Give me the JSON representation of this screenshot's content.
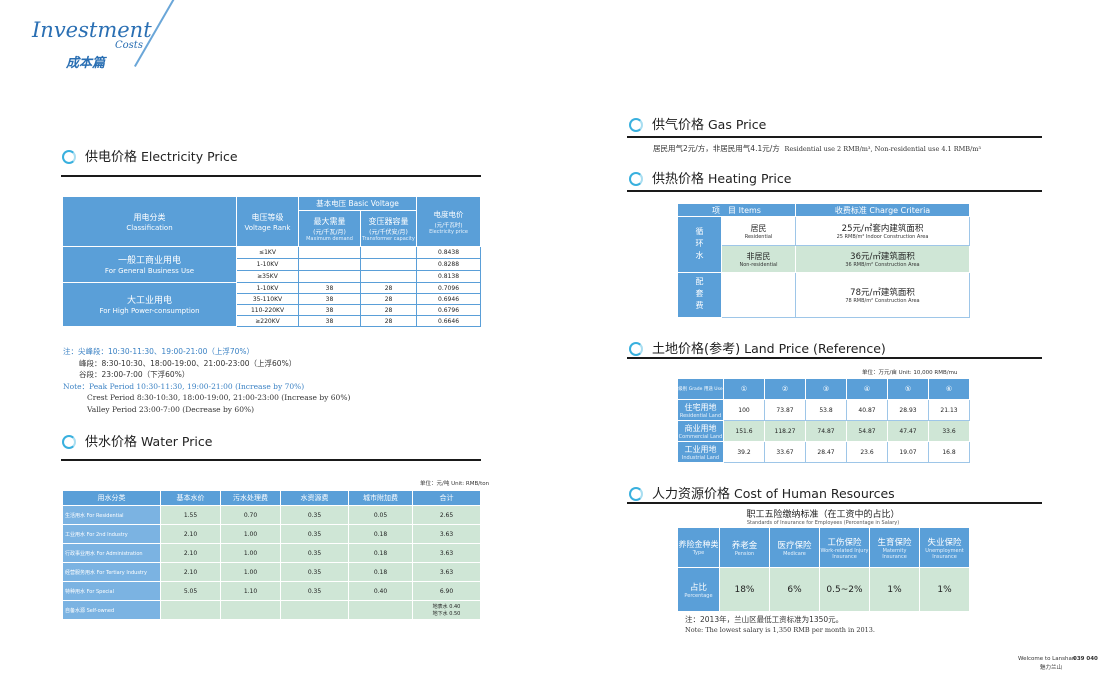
{
  "brand": {
    "title": "Investment",
    "sub": "Costs",
    "cn": "成本篇"
  },
  "electricity": {
    "heading_cn": "供电价格",
    "heading_en": "Electricity Price",
    "headers": {
      "class_cn": "用电分类",
      "class_en": "Classification",
      "volt_cn": "电压等级",
      "volt_en": "Voltage Rank",
      "basic_cn": "基本电压",
      "basic_en": "Basic Voltage",
      "maxd_cn": "最大需量",
      "maxd_unit": "(元/千瓦/月)",
      "maxd_en": "Maximum demand",
      "trans_cn": "变压器容量",
      "trans_unit": "(元/千伏安/月)",
      "trans_en": "Transformer capacity",
      "price_cn": "电度电价",
      "price_unit": "(元/千瓦时)",
      "price_en": "Electricity price"
    },
    "groups": [
      {
        "cn": "一般工商业用电",
        "en": "For General Business Use",
        "rows": [
          [
            "≤1KV",
            "",
            "",
            "0.8438"
          ],
          [
            "1-10KV",
            "",
            "",
            "0.8288"
          ],
          [
            "≥35KV",
            "",
            "",
            "0.8138"
          ]
        ]
      },
      {
        "cn": "大工业用电",
        "en": "For High Power-consumption",
        "rows": [
          [
            "1-10KV",
            "38",
            "28",
            "0.7096"
          ],
          [
            "35-110KV",
            "38",
            "28",
            "0.6946"
          ],
          [
            "110-220KV",
            "38",
            "28",
            "0.6796"
          ],
          [
            "≥220KV",
            "38",
            "28",
            "0.6646"
          ]
        ]
      }
    ],
    "notes_cn": [
      "注：尖峰段：10:30-11:30、19:00-21:00（上浮70%）",
      "峰段：8:30-10:30、18:00-19:00、21:00-23:00（上浮60%）",
      "谷段：23:00-7:00（下浮60%）"
    ],
    "notes_en": [
      "Note：Peak Period 10:30-11:30, 19:00-21:00 (Increase by 70%)",
      "Crest Period 8:30-10:30, 18:00-19:00, 21:00-23:00 (Increase by 60%)",
      "Valley Period 23:00-7:00 (Decrease by 60%)"
    ]
  },
  "water": {
    "heading_cn": "供水价格",
    "heading_en": "Water Price",
    "unit": "单位：元/吨 Unit: RMB/ton",
    "headers": [
      "用水分类",
      "基本水价",
      "污水处理费",
      "水资源费",
      "城市附加费",
      "合计"
    ],
    "rows": [
      [
        "生活用水 For Residential",
        "1.55",
        "0.70",
        "0.35",
        "0.05",
        "2.65"
      ],
      [
        "工业用水 For 2nd Industry",
        "2.10",
        "1.00",
        "0.35",
        "0.18",
        "3.63"
      ],
      [
        "行政事业用水 For Administration",
        "2.10",
        "1.00",
        "0.35",
        "0.18",
        "3.63"
      ],
      [
        "经营服务用水 For Tertiary Industry",
        "2.10",
        "1.00",
        "0.35",
        "0.18",
        "3.63"
      ],
      [
        "特种用水 For Special",
        "5.05",
        "1.10",
        "0.35",
        "0.40",
        "6.90"
      ],
      [
        "自备水源 Self-owned",
        "",
        "",
        "",
        "",
        "地表水 0.40\n地下水 0.50"
      ]
    ]
  },
  "gas": {
    "heading_cn": "供气价格",
    "heading_en": "Gas Price",
    "text_cn": "居民用气2元/方，非居民用气4.1元/方",
    "text_en": "Residential use 2 RMB/m³, Non-residential use 4.1 RMB/m³"
  },
  "heating": {
    "heading_cn": "供热价格",
    "heading_en": "Heating Price",
    "col1": "项　目 Items",
    "col2": "收费标准 Charge Criteria",
    "cat1": "循环水",
    "cat2": "配套费",
    "r1_cn": "居民",
    "r1_en": "Residential",
    "r1_val": "25元/㎡套内建筑面积",
    "r1_val_en": "25 RMB/m² Indoor Construction Area",
    "r2_cn": "非居民",
    "r2_en": "Non-residential",
    "r2_val": "36元/㎡建筑面积",
    "r2_val_en": "36 RMB/m² Construction Area",
    "r3_val": "78元/㎡建筑面积",
    "r3_val_en": "78 RMB/m² Construction Area"
  },
  "land": {
    "heading_cn": "土地价格(参考)",
    "heading_en": "Land Price (Reference)",
    "unit": "单位：万元/亩 Unit: 10,000 RMB/mu",
    "corner": "级别 Grade 用途 Use",
    "cols": [
      "①",
      "②",
      "③",
      "④",
      "⑤",
      "⑥"
    ],
    "rows": [
      {
        "cn": "住宅用地",
        "en": "Residential Land",
        "vals": [
          "100",
          "73.87",
          "53.8",
          "40.87",
          "28.93",
          "21.13"
        ]
      },
      {
        "cn": "商业用地",
        "en": "Commercial Land",
        "vals": [
          "151.6",
          "118.27",
          "74.87",
          "54.87",
          "47.47",
          "33.6"
        ]
      },
      {
        "cn": "工业用地",
        "en": "Industrial Land",
        "vals": [
          "39.2",
          "33.67",
          "28.47",
          "23.6",
          "19.07",
          "16.8"
        ]
      }
    ]
  },
  "hr": {
    "heading_cn": "人力资源价格",
    "heading_en": "Cost of Human Resources",
    "title_cn": "职工五险缴纳标准（在工资中的占比）",
    "title_en": "Standards of Insurance for Employees (Percentage in Salary)",
    "corner_cn": "养险金种类",
    "corner_en": "Type",
    "cols": [
      {
        "cn": "养老金",
        "en": "Pension"
      },
      {
        "cn": "医疗保险",
        "en": "Medicare"
      },
      {
        "cn": "工伤保险",
        "en": "Work-related Injury Insurance"
      },
      {
        "cn": "生育保险",
        "en": "Maternity Insurance"
      },
      {
        "cn": "失业保险",
        "en": "Unemployment Insurance"
      }
    ],
    "row_cn": "占比",
    "row_en": "Percentage",
    "vals": [
      "18%",
      "6%",
      "0.5~2%",
      "1%",
      "1%"
    ],
    "note_cn": "注：2013年，兰山区最低工资标准为1350元。",
    "note_en": "Note: The lowest salary is 1,350 RMB per month in 2013."
  },
  "footer": {
    "en": "Welcome to Lanshan",
    "pages": "039 040",
    "cn": "魅力兰山"
  }
}
